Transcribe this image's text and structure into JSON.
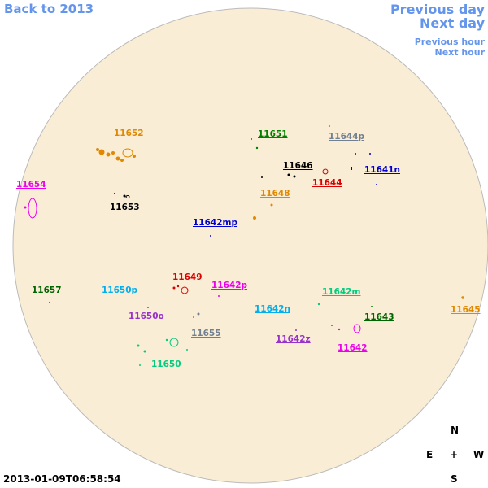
{
  "nav": {
    "back": "Back to 2013",
    "previous_day": "Previous day",
    "next_day": "Next day",
    "previous_hour": "Previous hour",
    "next_hour": "Next hour"
  },
  "regions": [
    {
      "label": "11652",
      "color": "#e08800"
    },
    {
      "label": "11651",
      "color": "#008000"
    },
    {
      "label": "11644p",
      "color": "#708090"
    },
    {
      "label": "11646",
      "color": "#000000"
    },
    {
      "label": "11641n",
      "color": "#0000cd"
    },
    {
      "label": "11644",
      "color": "#dd0000"
    },
    {
      "label": "11654",
      "color": "#ee00ee"
    },
    {
      "label": "11648",
      "color": "#e08800"
    },
    {
      "label": "11653",
      "color": "#000000"
    },
    {
      "label": "11642mp",
      "color": "#0000cd"
    },
    {
      "label": "11649",
      "color": "#dd0000"
    },
    {
      "label": "11642p",
      "color": "#ee00ee"
    },
    {
      "label": "11657",
      "color": "#006400"
    },
    {
      "label": "11650p",
      "color": "#00b0ee"
    },
    {
      "label": "11642m",
      "color": "#00cc80"
    },
    {
      "label": "11642n",
      "color": "#00b0ee"
    },
    {
      "label": "11645",
      "color": "#e08800"
    },
    {
      "label": "11650o",
      "color": "#9932cc"
    },
    {
      "label": "11643",
      "color": "#006400"
    },
    {
      "label": "11655",
      "color": "#708090"
    },
    {
      "label": "11642z",
      "color": "#9932cc"
    },
    {
      "label": "11642",
      "color": "#ee00ee"
    },
    {
      "label": "11650",
      "color": "#00cc80"
    }
  ],
  "compass": {
    "north": "N",
    "east": "E",
    "center": "+",
    "west": "W",
    "south": "S"
  },
  "timestamp": "2013-01-09T06:58:54"
}
